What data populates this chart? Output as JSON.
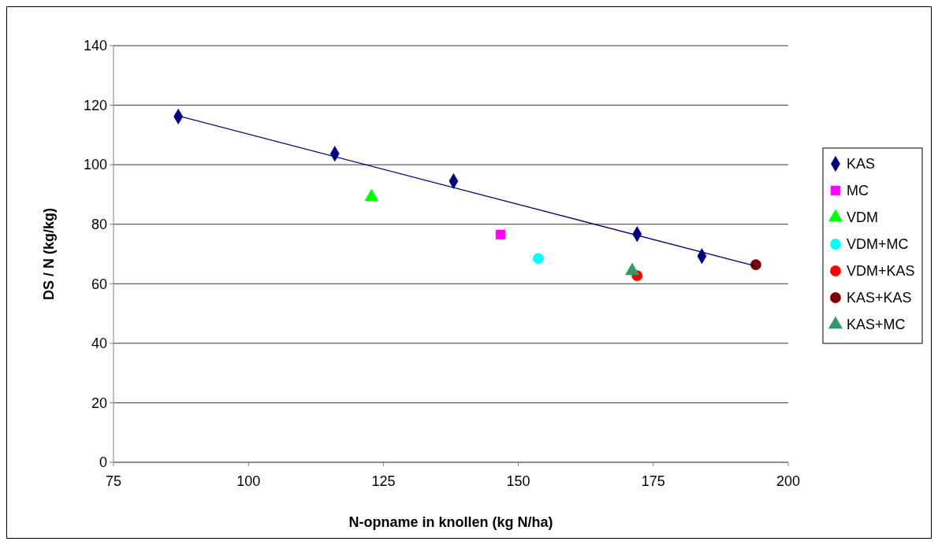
{
  "chart_data": {
    "type": "scatter",
    "xlabel": "N-opname in knollen (kg N/ha)",
    "ylabel": "DS / N  (kg/kg)",
    "xlim": [
      75,
      200
    ],
    "xticks": [
      75,
      100,
      125,
      150,
      175,
      200
    ],
    "ylim": [
      0,
      140
    ],
    "yticks": [
      0,
      20,
      40,
      60,
      80,
      100,
      120,
      140
    ],
    "grid": "y",
    "legend": "right",
    "series": [
      {
        "name": "KAS",
        "color": "#000080",
        "marker": "diamond",
        "x": [
          87,
          116,
          138,
          172,
          184
        ],
        "values": [
          116.2,
          103.7,
          94.5,
          76.7,
          69.3
        ]
      },
      {
        "name": "MC",
        "color": "#ff00ff",
        "marker": "square",
        "x": [
          146.7
        ],
        "values": [
          76.5
        ]
      },
      {
        "name": "VDM",
        "color": "#00ff00",
        "marker": "triangle",
        "x": [
          122.8
        ],
        "values": [
          89.2
        ]
      },
      {
        "name": "VDM+MC",
        "color": "#00ffff",
        "marker": "circle",
        "x": [
          153.7
        ],
        "values": [
          68.5
        ]
      },
      {
        "name": "VDM+KAS",
        "color": "#ff0000",
        "marker": "circle",
        "x": [
          172
        ],
        "values": [
          62.7
        ]
      },
      {
        "name": "KAS+KAS",
        "color": "#800000",
        "marker": "circle",
        "x": [
          194
        ],
        "values": [
          66.4
        ]
      },
      {
        "name": "KAS+MC",
        "color": "#339966",
        "marker": "triangle",
        "x": [
          171.1
        ],
        "values": [
          64.3
        ]
      },
      {
        "type": "line",
        "color": "#000080",
        "marker": "none",
        "x": [
          87,
          194
        ],
        "values": [
          116.4,
          65.9
        ]
      }
    ]
  }
}
